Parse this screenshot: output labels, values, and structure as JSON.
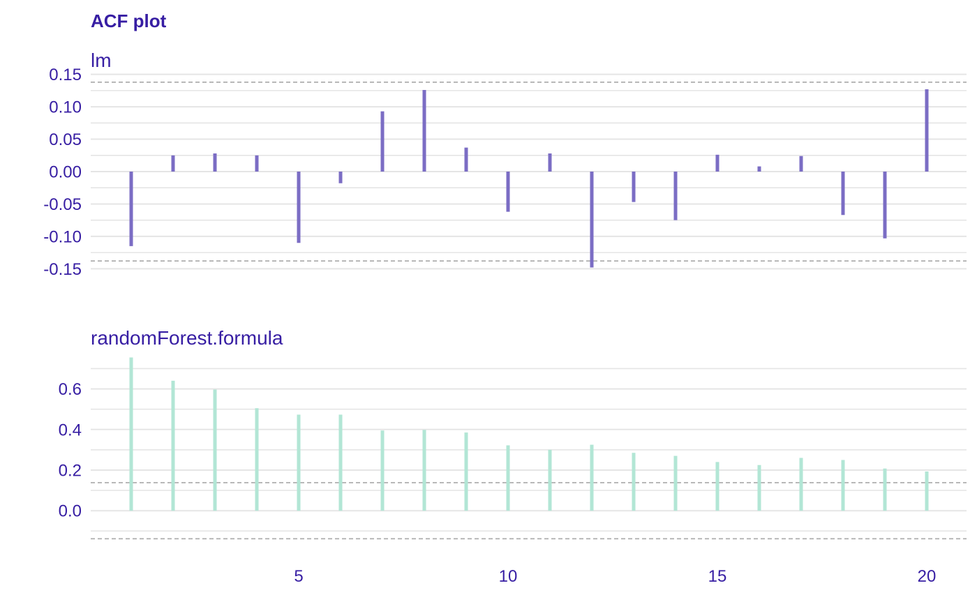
{
  "colors": {
    "text": "#371EA3",
    "lm": "#7B6DC4",
    "rf": "#B2E6D5",
    "grid": "#E5E5E5",
    "conf": "#A8A8A8"
  },
  "chart_data": {
    "type": "bar",
    "title": "ACF plot",
    "x": [
      1,
      2,
      3,
      4,
      5,
      6,
      7,
      8,
      9,
      10,
      11,
      12,
      13,
      14,
      15,
      16,
      17,
      18,
      19,
      20
    ],
    "x_ticks": [
      5,
      10,
      15,
      20
    ],
    "x_tick_labels": [
      "5",
      "10",
      "15",
      "20"
    ],
    "grid": true,
    "panels": [
      {
        "name": "lm",
        "color_key": "lm",
        "ylim": [
          -0.155,
          0.155
        ],
        "y_ticks": [
          -0.15,
          -0.1,
          -0.05,
          0.0,
          0.05,
          0.1,
          0.15
        ],
        "y_tick_labels": [
          "-0.15",
          "-0.10",
          "-0.05",
          "0.00",
          "0.05",
          "0.10",
          "0.15"
        ],
        "minor_grid": [
          -0.125,
          -0.075,
          -0.025,
          0.025,
          0.075,
          0.125
        ],
        "conf_band": [
          -0.138,
          0.138
        ],
        "values": [
          -0.115,
          0.025,
          0.028,
          0.025,
          -0.11,
          -0.018,
          0.093,
          0.126,
          0.037,
          -0.062,
          0.028,
          -0.148,
          -0.047,
          -0.075,
          0.026,
          0.008,
          0.024,
          -0.067,
          -0.103,
          0.127
        ]
      },
      {
        "name": "randomForest.formula",
        "color_key": "rf",
        "ylim": [
          -0.14,
          0.76
        ],
        "y_ticks": [
          0.0,
          0.2,
          0.4,
          0.6
        ],
        "y_tick_labels": [
          "0.0",
          "0.2",
          "0.4",
          "0.6"
        ],
        "minor_grid": [
          -0.1,
          0.1,
          0.3,
          0.5,
          0.7
        ],
        "conf_band": [
          -0.138,
          0.138
        ],
        "values": [
          0.755,
          0.64,
          0.597,
          0.505,
          0.473,
          0.473,
          0.395,
          0.398,
          0.385,
          0.322,
          0.3,
          0.325,
          0.285,
          0.27,
          0.24,
          0.225,
          0.26,
          0.25,
          0.208,
          0.193
        ]
      }
    ]
  }
}
